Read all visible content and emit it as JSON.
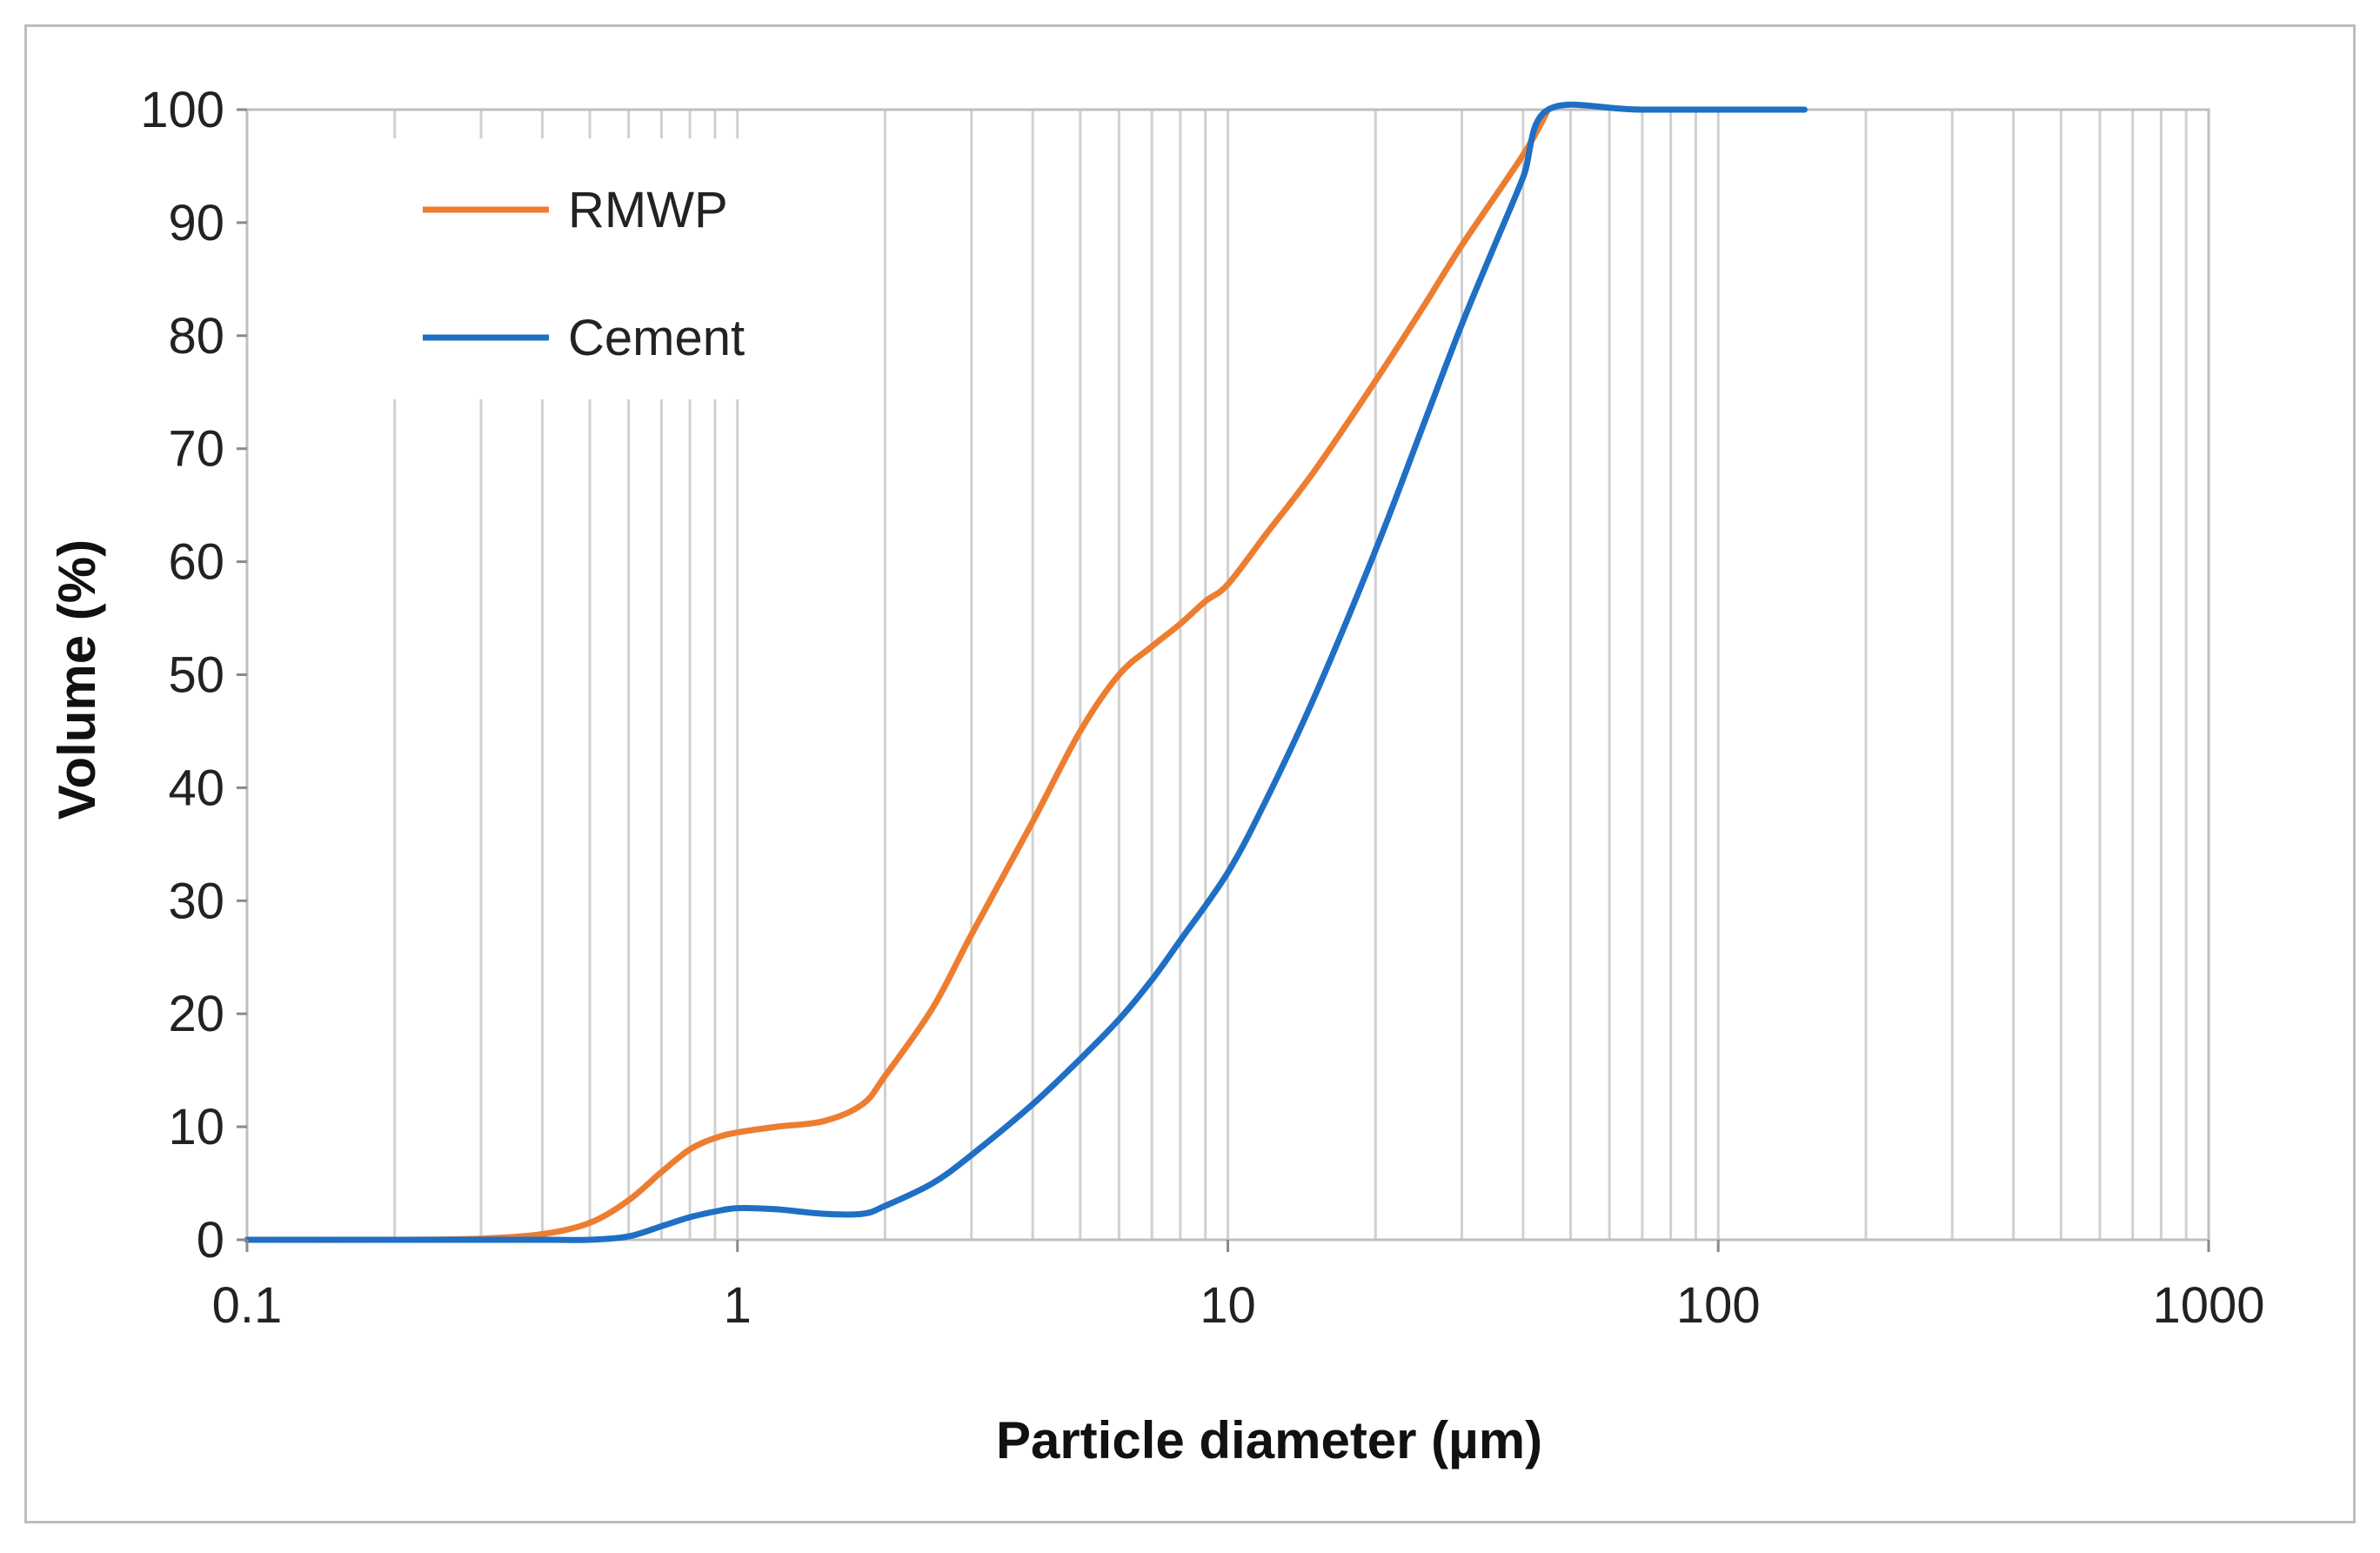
{
  "chart_data": {
    "type": "line",
    "title": "",
    "xlabel": "Particle diameter (µm)",
    "ylabel": "Volume (%)",
    "xscale": "log",
    "xlim": [
      0.1,
      1000
    ],
    "ylim": [
      0,
      100
    ],
    "x_ticks": [
      "0.1",
      "1",
      "10",
      "100",
      "1000"
    ],
    "y_ticks": [
      "0",
      "10",
      "20",
      "30",
      "40",
      "50",
      "60",
      "70",
      "80",
      "90",
      "100"
    ],
    "grid": "vertical minor log gridlines",
    "legend": "top-left",
    "series": [
      {
        "name": "RMWP",
        "color": "#ED7D31",
        "x": [
          0.1,
          0.2,
          0.3,
          0.4,
          0.5,
          0.6,
          0.7,
          0.8,
          0.9,
          1.0,
          1.2,
          1.5,
          1.8,
          2.0,
          2.5,
          3.0,
          4.0,
          5.0,
          6.0,
          7.0,
          8.0,
          9.0,
          10,
          12,
          15,
          20,
          25,
          30,
          40,
          45
        ],
        "y": [
          0,
          0,
          0.1,
          0.5,
          1.5,
          3.5,
          6,
          8,
          9,
          9.5,
          10,
          10.5,
          12,
          14.5,
          20.5,
          27,
          37,
          45,
          50,
          52.5,
          54.5,
          56.5,
          58,
          62.5,
          68,
          76,
          82.5,
          88,
          96,
          100
        ]
      },
      {
        "name": "Cement",
        "color": "#1F6FC5",
        "x": [
          0.1,
          0.2,
          0.4,
          0.5,
          0.6,
          0.7,
          0.8,
          0.9,
          1.0,
          1.2,
          1.5,
          1.8,
          2.0,
          2.5,
          3.0,
          4.0,
          5.0,
          6.0,
          7.0,
          8.0,
          10,
          12,
          15,
          20,
          25,
          30,
          35,
          40,
          45,
          70,
          150
        ],
        "y": [
          0,
          0,
          0,
          0,
          0.3,
          1.2,
          2,
          2.5,
          2.8,
          2.7,
          2.3,
          2.3,
          3,
          5,
          7.5,
          12,
          16,
          19.5,
          23,
          26.5,
          32.5,
          39,
          48,
          61,
          72,
          81,
          88,
          94,
          100,
          100,
          100
        ]
      }
    ]
  }
}
